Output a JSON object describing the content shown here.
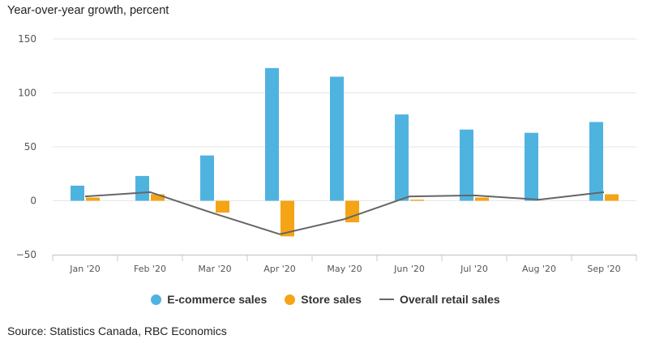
{
  "chart_data": {
    "type": "bar",
    "ylabel": "Year-over-year growth, percent",
    "categories": [
      "Jan '20",
      "Feb '20",
      "Mar '20",
      "Apr '20",
      "May '20",
      "Jun '20",
      "Jul '20",
      "Aug '20",
      "Sep '20"
    ],
    "series": [
      {
        "name": "E-commerce sales",
        "type": "bar",
        "color": "#4FB3E0",
        "values": [
          14,
          23,
          42,
          123,
          115,
          80,
          66,
          63,
          73
        ]
      },
      {
        "name": "Store sales",
        "type": "bar",
        "color": "#F5A416",
        "values": [
          3,
          6,
          -11,
          -33,
          -20,
          1,
          3,
          0,
          6
        ]
      },
      {
        "name": "Overall retail sales",
        "type": "line",
        "color": "#666666",
        "values": [
          4,
          8,
          -12,
          -31,
          -17,
          4,
          5,
          1,
          8
        ]
      }
    ],
    "ylim": [
      -50,
      150
    ],
    "yticks": [
      150,
      100,
      50,
      0,
      -50
    ],
    "grid": true,
    "legend_position": "bottom-center"
  },
  "source": "Source: Statistics Canada, RBC Economics"
}
